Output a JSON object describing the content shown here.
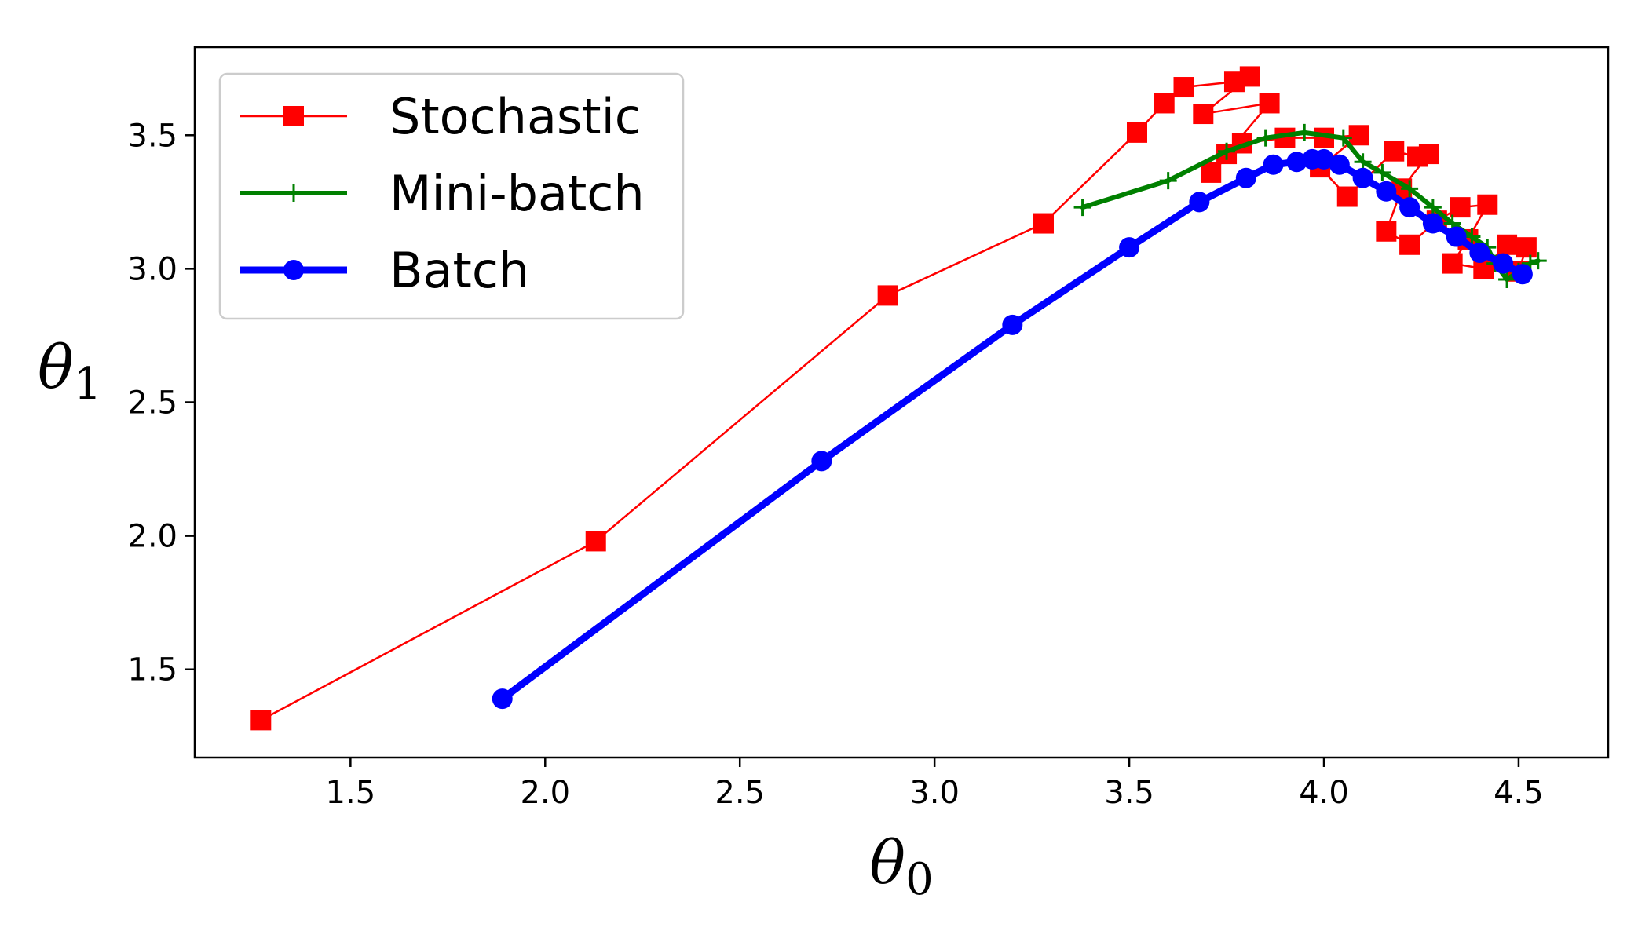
{
  "chart_data": {
    "type": "line",
    "xlabel": "θ0",
    "ylabel": "θ1",
    "xlim": [
      1.1,
      4.73
    ],
    "ylim": [
      1.17,
      3.83
    ],
    "grid": false,
    "legend_position": "top-left",
    "x_ticks": [
      "1.5",
      "2.0",
      "2.5",
      "3.0",
      "3.5",
      "4.0",
      "4.5"
    ],
    "y_ticks": [
      "1.5",
      "2.0",
      "2.5",
      "3.0",
      "3.5"
    ],
    "series": [
      {
        "name": "Stochastic",
        "color": "#ff0000",
        "marker": "square",
        "line_width": "thin",
        "points": [
          [
            1.27,
            1.31
          ],
          [
            2.13,
            1.98
          ],
          [
            2.88,
            2.9
          ],
          [
            3.28,
            3.17
          ],
          [
            3.52,
            3.51
          ],
          [
            3.59,
            3.62
          ],
          [
            3.64,
            3.68
          ],
          [
            3.77,
            3.7
          ],
          [
            3.81,
            3.72
          ],
          [
            3.69,
            3.58
          ],
          [
            3.86,
            3.62
          ],
          [
            3.75,
            3.43
          ],
          [
            3.71,
            3.36
          ],
          [
            3.79,
            3.47
          ],
          [
            3.9,
            3.49
          ],
          [
            4.0,
            3.49
          ],
          [
            4.09,
            3.5
          ],
          [
            3.99,
            3.38
          ],
          [
            4.06,
            3.27
          ],
          [
            4.18,
            3.44
          ],
          [
            4.24,
            3.42
          ],
          [
            4.27,
            3.43
          ],
          [
            4.2,
            3.3
          ],
          [
            4.16,
            3.14
          ],
          [
            4.22,
            3.09
          ],
          [
            4.29,
            3.18
          ],
          [
            4.35,
            3.23
          ],
          [
            4.42,
            3.24
          ],
          [
            4.37,
            3.11
          ],
          [
            4.33,
            3.02
          ],
          [
            4.41,
            3.0
          ],
          [
            4.47,
            3.09
          ],
          [
            4.52,
            3.08
          ],
          [
            4.5,
            2.99
          ]
        ]
      },
      {
        "name": "Mini-batch",
        "color": "#008000",
        "marker": "plus",
        "line_width": "medium",
        "points": [
          [
            3.38,
            3.23
          ],
          [
            3.6,
            3.33
          ],
          [
            3.75,
            3.44
          ],
          [
            3.85,
            3.49
          ],
          [
            3.95,
            3.51
          ],
          [
            4.05,
            3.49
          ],
          [
            4.1,
            3.4
          ],
          [
            4.15,
            3.36
          ],
          [
            4.22,
            3.3
          ],
          [
            4.28,
            3.23
          ],
          [
            4.33,
            3.17
          ],
          [
            4.38,
            3.12
          ],
          [
            4.42,
            3.08
          ],
          [
            4.44,
            3.02
          ],
          [
            4.47,
            2.96
          ],
          [
            4.5,
            2.99
          ],
          [
            4.53,
            3.02
          ],
          [
            4.55,
            3.03
          ]
        ]
      },
      {
        "name": "Batch",
        "color": "#0000ff",
        "marker": "circle",
        "line_width": "thick",
        "points": [
          [
            1.89,
            1.39
          ],
          [
            2.71,
            2.28
          ],
          [
            3.2,
            2.79
          ],
          [
            3.5,
            3.08
          ],
          [
            3.68,
            3.25
          ],
          [
            3.8,
            3.34
          ],
          [
            3.87,
            3.39
          ],
          [
            3.93,
            3.4
          ],
          [
            3.97,
            3.41
          ],
          [
            4.0,
            3.41
          ],
          [
            4.04,
            3.39
          ],
          [
            4.1,
            3.34
          ],
          [
            4.16,
            3.29
          ],
          [
            4.22,
            3.23
          ],
          [
            4.28,
            3.17
          ],
          [
            4.34,
            3.12
          ],
          [
            4.4,
            3.06
          ],
          [
            4.46,
            3.02
          ],
          [
            4.51,
            2.98
          ]
        ]
      }
    ]
  }
}
